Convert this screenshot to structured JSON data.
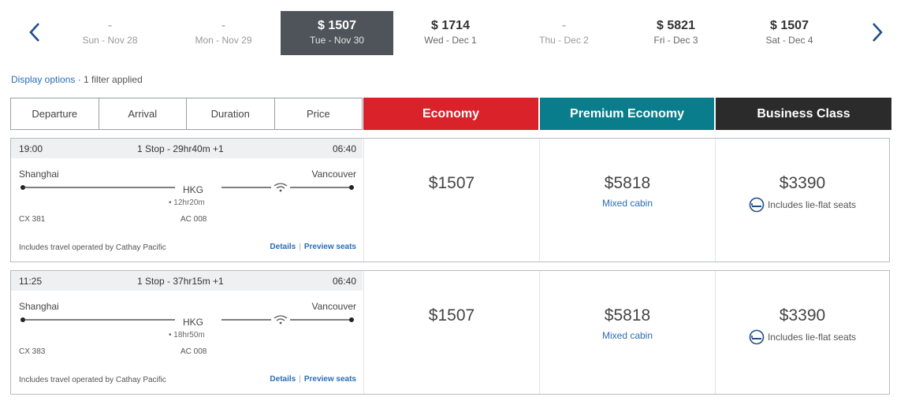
{
  "dates": [
    {
      "price": "-",
      "day": "Sun - Nov 28",
      "selected": false
    },
    {
      "price": "-",
      "day": "Mon - Nov 29",
      "selected": false
    },
    {
      "price": "$ 1507",
      "day": "Tue - Nov 30",
      "selected": true
    },
    {
      "price": "$ 1714",
      "day": "Wed - Dec 1",
      "selected": false
    },
    {
      "price": "-",
      "day": "Thu - Dec 2",
      "selected": false
    },
    {
      "price": "$ 5821",
      "day": "Fri - Dec 3",
      "selected": false
    },
    {
      "price": "$ 1507",
      "day": "Sat - Dec 4",
      "selected": false
    }
  ],
  "display_options": {
    "link": "Display options",
    "filter_text": " · 1 filter applied"
  },
  "sort": {
    "departure": "Departure",
    "arrival": "Arrival",
    "duration": "Duration",
    "price": "Price"
  },
  "cabins": {
    "economy": {
      "label": "Economy",
      "color": "#d9222a"
    },
    "premium": {
      "label": "Premium Economy",
      "color": "#0a7d8c"
    },
    "business": {
      "label": "Business Class",
      "color": "#2b2b2b"
    }
  },
  "flights": [
    {
      "dep_time": "19:00",
      "stops": "1 Stop - 29hr40m +1",
      "arr_time": "06:40",
      "from_city": "Shanghai",
      "to_city": "Vancouver",
      "hub": "HKG",
      "layover": "• 12hr20m",
      "flight_a": "CX 381",
      "flight_b": "AC 008",
      "operated": "Includes travel operated by Cathay Pacific",
      "details_link": "Details",
      "preview_link": "Preview seats",
      "economy_price": "$1507",
      "premium_price": "$5818",
      "premium_note": "Mixed cabin",
      "business_price": "$3390",
      "business_note": "Includes lie-flat seats"
    },
    {
      "dep_time": "11:25",
      "stops": "1 Stop - 37hr15m +1",
      "arr_time": "06:40",
      "from_city": "Shanghai",
      "to_city": "Vancouver",
      "hub": "HKG",
      "layover": "• 18hr50m",
      "flight_a": "CX 383",
      "flight_b": "AC 008",
      "operated": "Includes travel operated by Cathay Pacific",
      "details_link": "Details",
      "preview_link": "Preview seats",
      "economy_price": "$1507",
      "premium_price": "$5818",
      "premium_note": "Mixed cabin",
      "business_price": "$3390",
      "business_note": "Includes lie-flat seats"
    }
  ]
}
